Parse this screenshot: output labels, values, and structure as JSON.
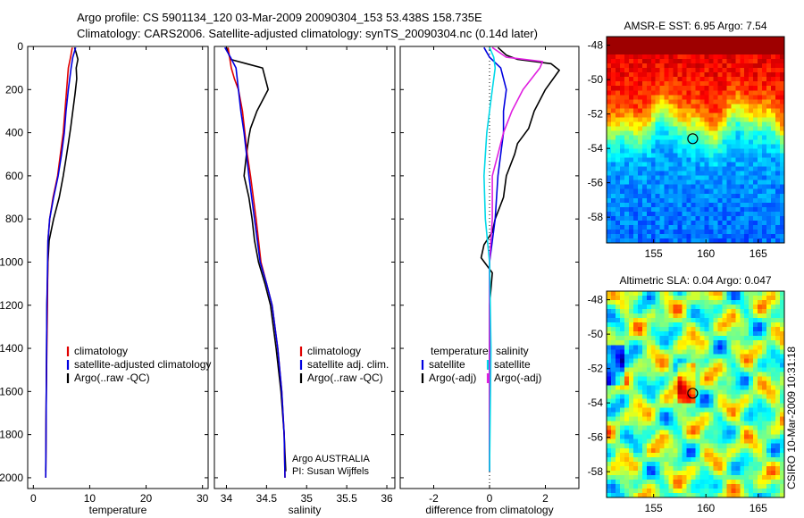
{
  "header": {
    "line1": "Argo profile: CS 5901134_120 03-Mar-2009 20090304_153 53.438S 158.735E",
    "line2": "Climatology: CARS2006. Satellite-adjusted climatology: synTS_20090304.nc (0.14d later)"
  },
  "credit": "CSIRO 10-Mar-2009 10:31:18",
  "chart_data": [
    {
      "id": "temperature",
      "type": "line",
      "xlabel": "temperature",
      "ylabel": "",
      "xlim": [
        -1,
        31
      ],
      "ylim": [
        2050,
        0
      ],
      "y_reversed": true,
      "xticks": [
        0,
        10,
        20,
        30
      ],
      "yticks": [
        0,
        200,
        400,
        600,
        800,
        1000,
        1200,
        1400,
        1600,
        1800,
        2000
      ],
      "legend": {
        "placement": "lower-middle",
        "items": [
          {
            "label": "climatology",
            "color": "#e00000"
          },
          {
            "label": "satellite-adjusted climatology",
            "color": "#0000e0"
          },
          {
            "label": "Argo(..raw -QC)",
            "color": "#000000"
          }
        ]
      },
      "series": [
        {
          "name": "Argo(..raw -QC)",
          "color": "#000000",
          "x": [
            7.3,
            7.6,
            7.9,
            7.6,
            7.7,
            7.4,
            7.0,
            6.6,
            6.2,
            5.8,
            5.3,
            4.6,
            3.6,
            2.8,
            2.6,
            2.4,
            2.3,
            2.2
          ],
          "y": [
            5,
            30,
            60,
            100,
            150,
            220,
            300,
            380,
            450,
            520,
            600,
            700,
            800,
            900,
            1000,
            1200,
            1600,
            1970
          ]
        },
        {
          "name": "climatology",
          "color": "#e00000",
          "x": [
            6.9,
            6.6,
            6.2,
            5.9,
            5.6,
            5.3,
            4.8,
            4.3,
            3.5,
            2.9,
            2.6,
            2.5,
            2.3,
            2.2
          ],
          "y": [
            5,
            50,
            100,
            200,
            300,
            400,
            500,
            600,
            700,
            800,
            900,
            1200,
            1600,
            2000
          ]
        },
        {
          "name": "satellite-adjusted climatology",
          "color": "#0000e0",
          "x": [
            7.5,
            7.0,
            6.7,
            6.2,
            5.8,
            5.5,
            5.0,
            4.4,
            3.6,
            2.9,
            2.6,
            2.4,
            2.3,
            2.2
          ],
          "y": [
            5,
            50,
            100,
            200,
            300,
            400,
            500,
            600,
            700,
            800,
            900,
            1200,
            1600,
            2000
          ]
        }
      ]
    },
    {
      "id": "salinity",
      "type": "line",
      "xlabel": "salinity",
      "ylabel": "",
      "xlim": [
        33.85,
        36.1
      ],
      "ylim": [
        2050,
        0
      ],
      "y_reversed": true,
      "xticks": [
        34,
        34.5,
        35,
        35.5,
        36
      ],
      "yticks": [
        0,
        200,
        400,
        600,
        800,
        1000,
        1200,
        1400,
        1600,
        1800,
        2000
      ],
      "legend": {
        "placement": "lower-right",
        "items": [
          {
            "label": "climatology",
            "color": "#e00000"
          },
          {
            "label": "satellite adj. clim.",
            "color": "#0000e0"
          },
          {
            "label": "Argo(..raw -QC)",
            "color": "#000000"
          }
        ]
      },
      "annotations": [
        "Argo AUSTRALIA",
        "PI: Susan Wijffels"
      ],
      "series": [
        {
          "name": "Argo(..raw -QC)",
          "color": "#000000",
          "x": [
            34.0,
            34.05,
            34.25,
            34.45,
            34.52,
            34.38,
            34.3,
            34.28,
            34.25,
            34.22,
            34.28,
            34.32,
            34.35,
            34.4,
            34.48,
            34.55,
            34.62,
            34.68,
            34.72,
            34.74
          ],
          "y": [
            5,
            60,
            80,
            100,
            200,
            300,
            380,
            420,
            500,
            600,
            700,
            800,
            900,
            1000,
            1100,
            1200,
            1400,
            1600,
            1800,
            1970
          ]
        },
        {
          "name": "climatology",
          "color": "#e00000",
          "x": [
            34.02,
            34.06,
            34.1,
            34.15,
            34.2,
            34.23,
            34.26,
            34.3,
            34.37,
            34.43,
            34.5,
            34.57,
            34.64,
            34.69,
            34.72,
            34.73
          ],
          "y": [
            5,
            100,
            150,
            200,
            300,
            400,
            500,
            600,
            800,
            1000,
            1100,
            1200,
            1400,
            1600,
            1800,
            2000
          ]
        },
        {
          "name": "satellite adj. clim.",
          "color": "#0000e0",
          "x": [
            33.98,
            34.05,
            34.12,
            34.15,
            34.18,
            34.22,
            34.25,
            34.28,
            34.35,
            34.42,
            34.5,
            34.57,
            34.64,
            34.69,
            34.72,
            34.73
          ],
          "y": [
            5,
            50,
            100,
            200,
            300,
            400,
            500,
            600,
            800,
            1000,
            1100,
            1200,
            1400,
            1600,
            1800,
            2000
          ]
        }
      ]
    },
    {
      "id": "difference",
      "type": "line",
      "xlabel": "difference from climatology",
      "ylabel": "",
      "xlim": [
        -3.2,
        3.2
      ],
      "ylim": [
        2050,
        0
      ],
      "y_reversed": true,
      "xticks": [
        -2,
        0,
        2
      ],
      "yticks": [
        0,
        200,
        400,
        600,
        800,
        1000,
        1200,
        1400,
        1600,
        1800,
        2000
      ],
      "legend": {
        "placement": "lower-middle",
        "columns": [
          {
            "title": "temperature",
            "items": [
              {
                "label": "satellite",
                "color": "#0000e0"
              },
              {
                "label": "Argo(-adj)",
                "color": "#000000"
              }
            ]
          },
          {
            "title": "salinity",
            "items": [
              {
                "label": "satellite",
                "color": "#00d8e8"
              },
              {
                "label": "Argo(-adj)",
                "color": "#e020e0"
              }
            ]
          }
        ]
      },
      "series": [
        {
          "name": "temperature Argo(-adj)",
          "color": "#000000",
          "x": [
            0.3,
            0.6,
            1.0,
            2.2,
            2.5,
            2.0,
            1.6,
            1.4,
            1.0,
            0.9,
            0.6,
            0.5,
            0.2,
            0.1,
            -0.2,
            -0.3,
            0.1,
            0.0,
            0.0
          ],
          "y": [
            5,
            40,
            60,
            80,
            110,
            200,
            300,
            380,
            450,
            500,
            600,
            700,
            800,
            860,
            920,
            980,
            1050,
            1200,
            1970
          ]
        },
        {
          "name": "temperature satellite",
          "color": "#0000e0",
          "x": [
            -0.2,
            0.0,
            0.4,
            0.6,
            0.5,
            0.5,
            0.4,
            0.3,
            0.2,
            0.0,
            0.0
          ],
          "y": [
            5,
            50,
            100,
            200,
            300,
            400,
            500,
            600,
            800,
            1000,
            1970
          ]
        },
        {
          "name": "salinity Argo(-adj)",
          "color": "#e020e0",
          "x": [
            0.1,
            0.6,
            1.9,
            1.8,
            1.2,
            0.8,
            0.5,
            0.3,
            0.1,
            0.1,
            0.0,
            0.0
          ],
          "y": [
            5,
            50,
            70,
            100,
            200,
            300,
            400,
            500,
            600,
            800,
            1000,
            1970
          ]
        },
        {
          "name": "salinity satellite",
          "color": "#00d8e8",
          "x": [
            0.0,
            0.15,
            0.2,
            0.1,
            0.0,
            -0.1,
            -0.2,
            -0.15,
            0.0,
            0.05,
            0.0
          ],
          "y": [
            5,
            50,
            100,
            200,
            300,
            400,
            600,
            800,
            1000,
            1400,
            1970
          ]
        }
      ]
    },
    {
      "id": "sst-map",
      "type": "heatmap",
      "title": "AMSR-E SST: 6.95 Argo: 7.54",
      "xlim": [
        150.5,
        167.5
      ],
      "ylim": [
        -59.5,
        -47.5
      ],
      "xticks": [
        155,
        160,
        165
      ],
      "yticks": [
        -48,
        -50,
        -52,
        -54,
        -56,
        -58
      ],
      "marker": {
        "lon": 158.735,
        "lat": -53.438
      }
    },
    {
      "id": "sla-map",
      "type": "heatmap",
      "title": "Altimetric SLA: 0.04 Argo: 0.047",
      "xlim": [
        150.5,
        167.5
      ],
      "ylim": [
        -59.5,
        -47.5
      ],
      "xticks": [
        155,
        160,
        165
      ],
      "yticks": [
        -48,
        -50,
        -52,
        -54,
        -56,
        -58
      ],
      "marker": {
        "lon": 158.735,
        "lat": -53.438
      }
    }
  ]
}
